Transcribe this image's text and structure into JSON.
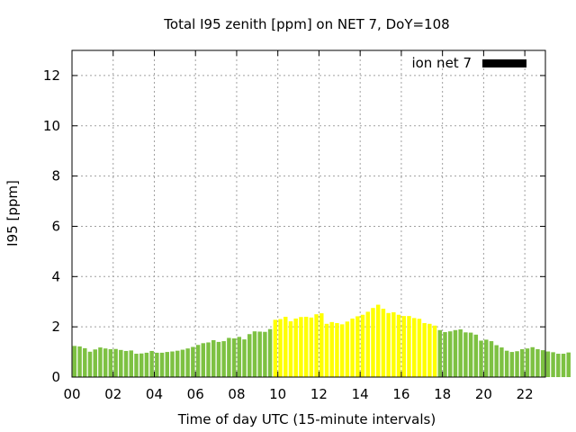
{
  "chart_data": {
    "type": "bar",
    "title": "Total I95 zenith [ppm] on NET 7, DoY=108",
    "xlabel": "Time of day UTC (15-minute intervals)",
    "ylabel": "I95 [ppm]",
    "xlim": [
      0,
      23
    ],
    "ylim": [
      0,
      13
    ],
    "x_ticks": [
      "00",
      "02",
      "04",
      "06",
      "08",
      "10",
      "12",
      "14",
      "16",
      "18",
      "20",
      "22"
    ],
    "y_ticks": [
      "0",
      "2",
      "4",
      "6",
      "8",
      "10",
      "12"
    ],
    "grid": true,
    "legend": {
      "position": "top-right",
      "entries": [
        {
          "label": "ion net 7",
          "color": "#000000"
        }
      ]
    },
    "interval_hours": 0.25,
    "colors": {
      "low": "#7dc142",
      "high": "#ffff00",
      "frame": "#000000"
    },
    "series": [
      {
        "values": [
          1.24,
          1.22,
          1.15,
          1.01,
          1.1,
          1.18,
          1.14,
          1.11,
          1.12,
          1.08,
          1.04,
          1.06,
          0.93,
          0.94,
          0.97,
          1.04,
          0.97,
          0.97,
          1.0,
          1.02,
          1.05,
          1.09,
          1.14,
          1.2,
          1.28,
          1.35,
          1.38,
          1.47,
          1.4,
          1.43,
          1.56,
          1.54,
          1.6,
          1.5,
          1.71,
          1.82,
          1.81,
          1.8,
          1.91,
          2.28,
          2.31,
          2.4,
          2.22,
          2.33,
          2.39,
          2.4,
          2.37,
          2.5,
          2.54,
          2.12,
          2.19,
          2.15,
          2.1,
          2.21,
          2.33,
          2.42,
          2.48,
          2.6,
          2.75,
          2.88,
          2.72,
          2.55,
          2.58,
          2.48,
          2.43,
          2.43,
          2.35,
          2.32,
          2.15,
          2.12,
          2.05,
          1.87,
          1.79,
          1.82,
          1.87,
          1.9,
          1.78,
          1.77,
          1.69,
          1.45,
          1.49,
          1.43,
          1.27,
          1.18,
          1.05,
          1.0,
          1.03,
          1.11,
          1.14,
          1.19,
          1.11,
          1.07,
          1.02,
          0.99,
          0.93,
          0.93,
          0.98
        ],
        "colors": [
          "low",
          "low",
          "low",
          "low",
          "low",
          "low",
          "low",
          "low",
          "low",
          "low",
          "low",
          "low",
          "low",
          "low",
          "low",
          "low",
          "low",
          "low",
          "low",
          "low",
          "low",
          "low",
          "low",
          "low",
          "low",
          "low",
          "low",
          "low",
          "low",
          "low",
          "low",
          "low",
          "low",
          "low",
          "low",
          "low",
          "low",
          "low",
          "low",
          "high",
          "high",
          "high",
          "high",
          "high",
          "high",
          "high",
          "high",
          "high",
          "high",
          "high",
          "high",
          "high",
          "high",
          "high",
          "high",
          "high",
          "high",
          "high",
          "high",
          "high",
          "high",
          "high",
          "high",
          "high",
          "high",
          "high",
          "high",
          "high",
          "high",
          "high",
          "high",
          "low",
          "low",
          "low",
          "low",
          "low",
          "low",
          "low",
          "low",
          "low",
          "low",
          "low",
          "low",
          "low",
          "low",
          "low",
          "low",
          "low",
          "low",
          "low",
          "low",
          "low",
          "low",
          "low",
          "low",
          "low",
          "low"
        ]
      }
    ]
  }
}
